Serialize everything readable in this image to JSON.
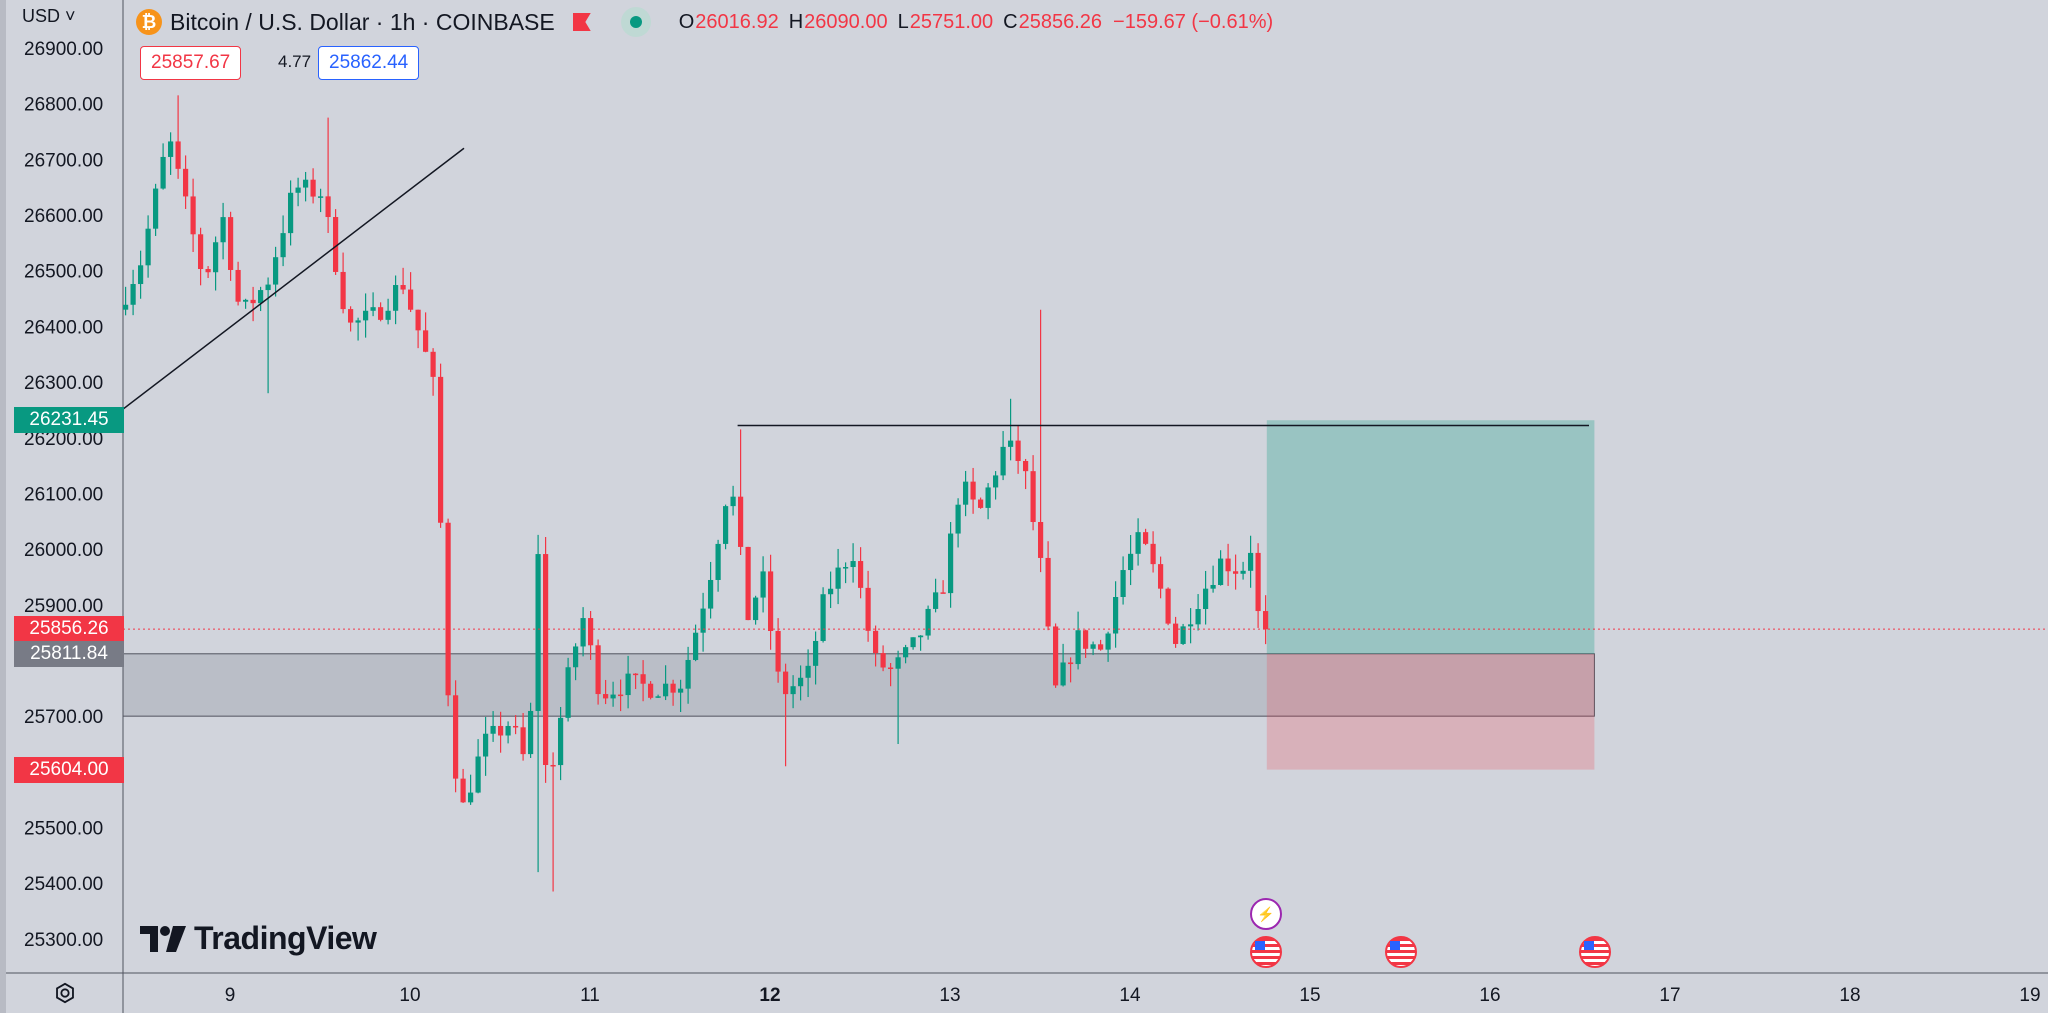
{
  "header": {
    "currency_label": "USD",
    "symbol_title": "Bitcoin / U.S. Dollar · 1h · COINBASE",
    "coin_glyph": "₿",
    "ohlc": [
      {
        "key": "O",
        "value": "26016.92"
      },
      {
        "key": "H",
        "value": "26090.00"
      },
      {
        "key": "L",
        "value": "25751.00"
      },
      {
        "key": "C",
        "value": "25856.26"
      }
    ],
    "change": "−159.67 (−0.61%)",
    "sell_price": "25857.67",
    "spread": "4.77",
    "buy_price": "25862.44"
  },
  "price_scale_tags": {
    "target": {
      "value": "26231.45",
      "color": "#089981"
    },
    "last": {
      "value": "25856.26",
      "color": "#f23645"
    },
    "entry": {
      "value": "25811.84",
      "color": "#787b86"
    },
    "stop": {
      "value": "25604.00",
      "color": "#f23645"
    }
  },
  "branding": {
    "logo_text": "TradingView"
  },
  "colors": {
    "up": "#089981",
    "down": "#f23645",
    "background": "#d1d4dc"
  },
  "icons": [
    "bitcoin-icon",
    "flag-icon",
    "market-status-icon",
    "settings-icon",
    "us-flag-icon",
    "lightning-icon"
  ],
  "chart_data": {
    "type": "candlestick",
    "y_ticks": [
      "26900.00",
      "26800.00",
      "26700.00",
      "26600.00",
      "26500.00",
      "26400.00",
      "26300.00",
      "26200.00",
      "26100.00",
      "26000.00",
      "25900.00",
      "25700.00",
      "25500.00",
      "25400.00",
      "25300.00"
    ],
    "ylim": [
      25250,
      26950
    ],
    "x_ticks": [
      {
        "label": "9",
        "day": 9,
        "bold": false
      },
      {
        "label": "10",
        "day": 10,
        "bold": false
      },
      {
        "label": "11",
        "day": 11,
        "bold": false
      },
      {
        "label": "12",
        "day": 12,
        "bold": true
      },
      {
        "label": "13",
        "day": 13,
        "bold": false
      },
      {
        "label": "14",
        "day": 14,
        "bold": false
      },
      {
        "label": "15",
        "day": 15,
        "bold": false
      },
      {
        "label": "16",
        "day": 16,
        "bold": false
      },
      {
        "label": "17",
        "day": 17,
        "bold": false
      },
      {
        "label": "18",
        "day": 18,
        "bold": false
      },
      {
        "label": "19",
        "day": 19,
        "bold": false
      }
    ],
    "xlim": [
      8.4,
      19
    ],
    "anchors": [
      {
        "day": 8.42,
        "price": 26430
      },
      {
        "day": 8.55,
        "price": 26520
      },
      {
        "day": 8.7,
        "price": 26740
      },
      {
        "day": 8.9,
        "price": 26480
      },
      {
        "day": 9.0,
        "price": 26600
      },
      {
        "day": 9.1,
        "price": 26420
      },
      {
        "day": 9.25,
        "price": 26480
      },
      {
        "day": 9.4,
        "price": 26650
      },
      {
        "day": 9.55,
        "price": 26640
      },
      {
        "day": 9.7,
        "price": 26400
      },
      {
        "day": 9.85,
        "price": 26420
      },
      {
        "day": 10.0,
        "price": 26480
      },
      {
        "day": 10.12,
        "price": 26360
      },
      {
        "day": 10.18,
        "price": 26280
      },
      {
        "day": 10.25,
        "price": 25760
      },
      {
        "day": 10.32,
        "price": 25520
      },
      {
        "day": 10.45,
        "price": 25650
      },
      {
        "day": 10.6,
        "price": 25690
      },
      {
        "day": 10.7,
        "price": 25600
      },
      {
        "day": 10.75,
        "price": 26030
      },
      {
        "day": 10.8,
        "price": 25560
      },
      {
        "day": 10.92,
        "price": 25770
      },
      {
        "day": 11.0,
        "price": 25880
      },
      {
        "day": 11.1,
        "price": 25740
      },
      {
        "day": 11.25,
        "price": 25760
      },
      {
        "day": 11.4,
        "price": 25750
      },
      {
        "day": 11.55,
        "price": 25760
      },
      {
        "day": 11.7,
        "price": 25940
      },
      {
        "day": 11.82,
        "price": 26130
      },
      {
        "day": 11.92,
        "price": 25880
      },
      {
        "day": 12.0,
        "price": 25950
      },
      {
        "day": 12.1,
        "price": 25740
      },
      {
        "day": 12.25,
        "price": 25770
      },
      {
        "day": 12.35,
        "price": 25920
      },
      {
        "day": 12.5,
        "price": 26000
      },
      {
        "day": 12.62,
        "price": 25800
      },
      {
        "day": 12.72,
        "price": 25780
      },
      {
        "day": 12.85,
        "price": 25830
      },
      {
        "day": 13.0,
        "price": 25930
      },
      {
        "day": 13.1,
        "price": 26120
      },
      {
        "day": 13.2,
        "price": 26060
      },
      {
        "day": 13.35,
        "price": 26190
      },
      {
        "day": 13.45,
        "price": 26150
      },
      {
        "day": 13.55,
        "price": 25960
      },
      {
        "day": 13.62,
        "price": 25740
      },
      {
        "day": 13.75,
        "price": 25840
      },
      {
        "day": 13.88,
        "price": 25820
      },
      {
        "day": 14.0,
        "price": 25960
      },
      {
        "day": 14.1,
        "price": 26020
      },
      {
        "day": 14.2,
        "price": 25940
      },
      {
        "day": 14.3,
        "price": 25830
      },
      {
        "day": 14.4,
        "price": 25900
      },
      {
        "day": 14.55,
        "price": 25980
      },
      {
        "day": 14.66,
        "price": 25960
      },
      {
        "day": 14.72,
        "price": 26010
      },
      {
        "day": 14.76,
        "price": 25856
      }
    ],
    "trendline": {
      "from": {
        "day": 8.4,
        "price": 26250
      },
      "to": {
        "day": 10.3,
        "price": 26720
      }
    },
    "resistance_line": {
      "from": {
        "day": 11.82,
        "price": 26222
      },
      "to": {
        "day": 16.55,
        "price": 26222
      }
    },
    "support_zone": {
      "from_day": 8.4,
      "to_day": 16.58,
      "top": 25812,
      "bottom": 25700
    },
    "position": {
      "start_day": 14.76,
      "end_day": 16.58,
      "entry": 25811.84,
      "target": 26231.45,
      "stop": 25604.0
    },
    "last_price_line": 25856.26,
    "events": [
      {
        "day": 14.75,
        "type": "lightning"
      },
      {
        "day": 14.75,
        "type": "us-flag"
      },
      {
        "day": 15.5,
        "type": "us-flag"
      },
      {
        "day": 16.58,
        "type": "us-flag"
      }
    ]
  }
}
